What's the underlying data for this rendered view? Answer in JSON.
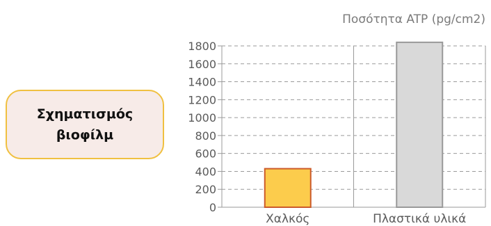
{
  "unit_label": "Ποσότητα ATP (pg/cm2)",
  "side_box": {
    "text": "Σχηματισμός\nβιοφίλμ"
  },
  "chart_data": {
    "type": "bar",
    "title": "",
    "xlabel": "",
    "ylabel": "Ποσότητα ATP (pg/cm2)",
    "categories": [
      "Χαλκός",
      "Πλαστικά υλικά"
    ],
    "values": [
      430,
      1840
    ],
    "ylim": [
      0,
      1800
    ],
    "yticks": [
      "0",
      "200",
      "400",
      "600",
      "800",
      "1000",
      "1200",
      "1400",
      "1600",
      "1800"
    ],
    "grid": true,
    "colors": {
      "bar_fills": [
        "#fccc4c",
        "#d9d9d9"
      ],
      "bar_strokes": [
        "#cc5a2a",
        "#999999"
      ],
      "axis": "#9a9a9a",
      "grid": "#9a9a9a",
      "tick_label": "#5a5a5a"
    }
  }
}
